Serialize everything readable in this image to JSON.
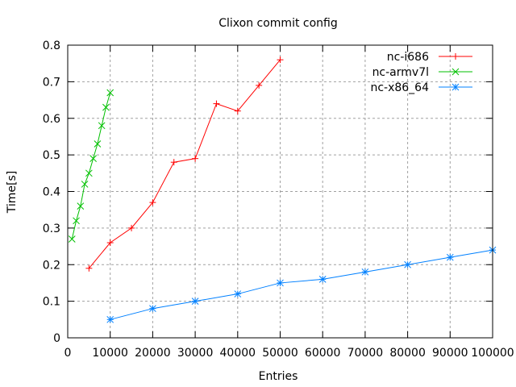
{
  "chart_data": {
    "type": "line",
    "title": "Clixon commit config",
    "xlabel": "Entries",
    "ylabel": "Time[s]",
    "xlim": [
      0,
      100000
    ],
    "ylim": [
      0,
      0.8
    ],
    "xticks": [
      0,
      10000,
      20000,
      30000,
      40000,
      50000,
      60000,
      70000,
      80000,
      90000,
      100000
    ],
    "yticks": [
      0,
      0.1,
      0.2,
      0.3,
      0.4,
      0.5,
      0.6,
      0.7,
      0.8
    ],
    "xtick_labels": [
      "0",
      "10000",
      "20000",
      "30000",
      "40000",
      "50000",
      "60000",
      "70000",
      "80000",
      "90000",
      "100000"
    ],
    "ytick_labels": [
      "0",
      "0.1",
      "0.2",
      "0.3",
      "0.4",
      "0.5",
      "0.6",
      "0.7",
      "0.8"
    ],
    "grid": true,
    "legend_position": "top-right",
    "series": [
      {
        "name": "nc-i686",
        "color": "#ff0000",
        "marker": "plus",
        "x": [
          5000,
          10000,
          15000,
          20000,
          25000,
          30000,
          35000,
          40000,
          45000,
          50000
        ],
        "y": [
          0.19,
          0.26,
          0.3,
          0.37,
          0.48,
          0.49,
          0.64,
          0.62,
          0.69,
          0.76
        ]
      },
      {
        "name": "nc-armv7l",
        "color": "#00c000",
        "marker": "cross",
        "x": [
          1000,
          2000,
          3000,
          4000,
          5000,
          6000,
          7000,
          8000,
          9000,
          10000
        ],
        "y": [
          0.27,
          0.32,
          0.36,
          0.42,
          0.45,
          0.49,
          0.53,
          0.58,
          0.63,
          0.67
        ]
      },
      {
        "name": "nc-x86_64",
        "color": "#0080ff",
        "marker": "star",
        "x": [
          10000,
          20000,
          30000,
          40000,
          50000,
          60000,
          70000,
          80000,
          90000,
          100000
        ],
        "y": [
          0.05,
          0.08,
          0.1,
          0.12,
          0.15,
          0.16,
          0.18,
          0.2,
          0.22,
          0.24
        ]
      }
    ]
  }
}
